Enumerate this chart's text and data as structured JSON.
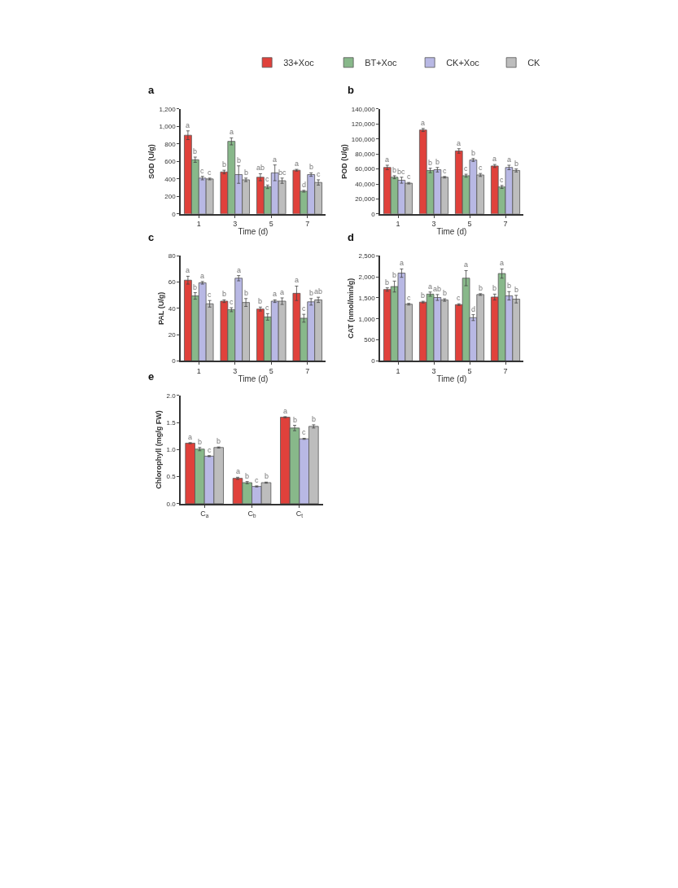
{
  "chart_data": [
    {
      "type": "bar",
      "title": "a",
      "xlabel": "Time (d)",
      "ylabel": "SOD (U/g)",
      "categories": [
        "1",
        "3",
        "5",
        "7"
      ],
      "legend": "top",
      "ylim": [
        0,
        1200
      ],
      "yticks": [
        0,
        200,
        400,
        600,
        800,
        {
          "value": 1000,
          "label": "1,000"
        },
        {
          "value": 1200,
          "label": "1,200"
        }
      ],
      "series": [
        {
          "name": "33+Xoc",
          "color": "#e0413b",
          "values": [
            900,
            480,
            420,
            500
          ],
          "errors": [
            50,
            20,
            40,
            10
          ],
          "value_labels": [
            "a",
            "b",
            "ab",
            "a"
          ]
        },
        {
          "name": "BT+Xoc",
          "color": "#88b88a",
          "values": [
            620,
            830,
            310,
            260
          ],
          "errors": [
            30,
            40,
            20,
            10
          ],
          "value_labels": [
            "b",
            "a",
            "c",
            "d"
          ]
        },
        {
          "name": "CK+Xoc",
          "color": "#b8b8e4",
          "values": [
            410,
            450,
            470,
            450
          ],
          "errors": [
            20,
            100,
            90,
            20
          ],
          "value_labels": [
            "c",
            "b",
            "a",
            "b"
          ]
        },
        {
          "name": "CK",
          "color": "#bdbdbd",
          "values": [
            400,
            390,
            380,
            360
          ],
          "errors": [
            10,
            20,
            30,
            30
          ],
          "value_labels": [
            "c",
            "b",
            "bc",
            "c"
          ]
        }
      ]
    },
    {
      "type": "bar",
      "title": "b",
      "xlabel": "Time (d)",
      "ylabel": "POD (U/g)",
      "categories": [
        "1",
        "3",
        "5",
        "7"
      ],
      "ylim": [
        0,
        140000
      ],
      "yticks": [
        0,
        {
          "value": 20000,
          "label": "20,000"
        },
        {
          "value": 40000,
          "label": "40,000"
        },
        {
          "value": 60000,
          "label": "60,000"
        },
        {
          "value": 80000,
          "label": "80,000"
        },
        {
          "value": 100000,
          "label": "100,000"
        },
        {
          "value": 120000,
          "label": "120,000"
        },
        {
          "value": 140000,
          "label": "140,000"
        }
      ],
      "series": [
        {
          "color": "#e0413b",
          "values": [
            62000,
            112000,
            84000,
            64000
          ],
          "errors": [
            3000,
            2000,
            3000,
            2000
          ],
          "value_labels": [
            "a",
            "a",
            "a",
            "a"
          ]
        },
        {
          "color": "#88b88a",
          "values": [
            49000,
            58000,
            51000,
            36000
          ],
          "errors": [
            2000,
            3000,
            2000,
            2000
          ],
          "value_labels": [
            "b",
            "b",
            "c",
            "c"
          ]
        },
        {
          "color": "#b8b8e4",
          "values": [
            45000,
            59000,
            72000,
            62000
          ],
          "errors": [
            4000,
            3000,
            2000,
            3000
          ],
          "value_labels": [
            "bc",
            "b",
            "b",
            "a"
          ]
        },
        {
          "color": "#bdbdbd",
          "values": [
            41000,
            49000,
            52000,
            58000
          ],
          "errors": [
            1000,
            1000,
            2000,
            2000
          ],
          "value_labels": [
            "c",
            "c",
            "c",
            "b"
          ]
        }
      ]
    },
    {
      "type": "bar",
      "title": "c",
      "xlabel": "Time (d)",
      "ylabel": "PAL (U/g)",
      "categories": [
        "1",
        "3",
        "5",
        "7"
      ],
      "ylim": [
        0,
        80
      ],
      "yticks": [
        0,
        20,
        40,
        60,
        80
      ],
      "series": [
        {
          "color": "#e0413b",
          "values": [
            61.5,
            45.5,
            39.5,
            51.5
          ],
          "errors": [
            3,
            1,
            1.5,
            5.5
          ],
          "value_labels": [
            "a",
            "b",
            "b",
            "a"
          ]
        },
        {
          "color": "#88b88a",
          "values": [
            49.5,
            39,
            33.5,
            32.5
          ],
          "errors": [
            2.5,
            1.5,
            2.5,
            3
          ],
          "value_labels": [
            "b",
            "c",
            "c",
            "c"
          ]
        },
        {
          "color": "#b8b8e4",
          "values": [
            59.5,
            63,
            45.5,
            45
          ],
          "errors": [
            1,
            2,
            1,
            2.5
          ],
          "value_labels": [
            "a",
            "a",
            "a",
            "b"
          ]
        },
        {
          "color": "#bdbdbd",
          "values": [
            43.5,
            44.5,
            45.5,
            46.5
          ],
          "errors": [
            2.5,
            3,
            2.5,
            2
          ],
          "value_labels": [
            "c",
            "b",
            "a",
            "ab"
          ]
        }
      ]
    },
    {
      "type": "bar",
      "title": "d",
      "xlabel": "Time (d)",
      "ylabel": "CAT (nmol/min/g)",
      "categories": [
        "1",
        "3",
        "5",
        "7"
      ],
      "ylim": [
        0,
        2500
      ],
      "yticks": [
        0,
        500,
        {
          "value": 1000,
          "label": "1,000"
        },
        {
          "value": 1500,
          "label": "1,500"
        },
        {
          "value": 2000,
          "label": "2,000"
        },
        {
          "value": 2500,
          "label": "2,500"
        }
      ],
      "series": [
        {
          "color": "#e0413b",
          "values": [
            1700,
            1400,
            1340,
            1520
          ],
          "errors": [
            40,
            20,
            20,
            70
          ],
          "value_labels": [
            "b",
            "b",
            "c",
            "b"
          ]
        },
        {
          "color": "#88b88a",
          "values": [
            1770,
            1590,
            1970,
            2080
          ],
          "errors": [
            130,
            50,
            180,
            110
          ],
          "value_labels": [
            "b",
            "a",
            "a",
            "a"
          ]
        },
        {
          "color": "#b8b8e4",
          "values": [
            2090,
            1510,
            1030,
            1550
          ],
          "errors": [
            100,
            70,
            70,
            100
          ],
          "value_labels": [
            "a",
            "ab",
            "d",
            "b"
          ]
        },
        {
          "color": "#bdbdbd",
          "values": [
            1350,
            1450,
            1580,
            1470
          ],
          "errors": [
            20,
            30,
            20,
            90
          ],
          "value_labels": [
            "c",
            "b",
            "b",
            "b"
          ]
        }
      ]
    },
    {
      "type": "bar",
      "title": "e",
      "ylabel": "Chlorophyll (mg/g FW)",
      "categories": [
        "C$_{a}$",
        "C$_{b}$",
        "C$_{t}$"
      ],
      "ylim": [
        0,
        2.0
      ],
      "yticks": [
        {
          "value": 0,
          "label": "0.0"
        },
        0.5,
        {
          "value": 1,
          "label": "1.0"
        },
        1.5,
        {
          "value": 2,
          "label": "2.0"
        }
      ],
      "series": [
        {
          "color": "#e0413b",
          "values": [
            1.12,
            0.47,
            1.6
          ],
          "errors": [
            0.01,
            0.02,
            0.01
          ],
          "value_labels": [
            "a",
            "a",
            "a"
          ]
        },
        {
          "color": "#88b88a",
          "values": [
            1.01,
            0.39,
            1.4
          ],
          "errors": [
            0.03,
            0.02,
            0.05
          ],
          "value_labels": [
            "b",
            "b",
            "b"
          ]
        },
        {
          "color": "#b8b8e4",
          "values": [
            0.88,
            0.32,
            1.2
          ],
          "errors": [
            0.01,
            0.01,
            0.01
          ],
          "value_labels": [
            "c",
            "c",
            "c"
          ]
        },
        {
          "color": "#bdbdbd",
          "values": [
            1.04,
            0.39,
            1.43
          ],
          "errors": [
            0.01,
            0.01,
            0.03
          ],
          "value_labels": [
            "b",
            "b",
            "b"
          ]
        }
      ]
    }
  ]
}
